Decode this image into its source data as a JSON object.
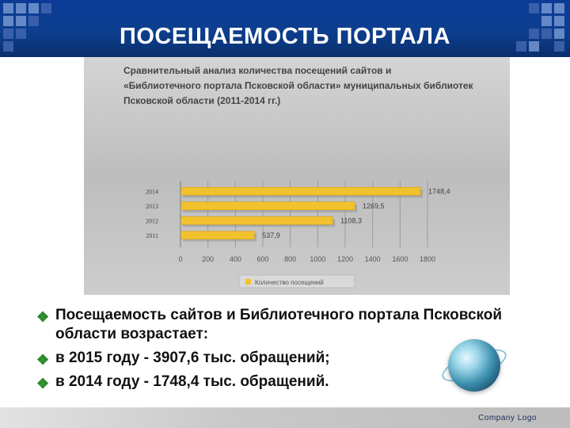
{
  "slide": {
    "title": "ПОСЕЩАЕМОСТЬ ПОРТАЛА",
    "footer_logo": "Company  Logo"
  },
  "colors": {
    "header_blue": "#0b3b97",
    "bar_fill": "#f2c12e",
    "bullet_green": "#2a8a2a"
  },
  "icons": {
    "bullet": "diamond-bullet-icon",
    "globe": "globe-icon"
  },
  "chart_data": {
    "type": "bar",
    "orientation": "horizontal",
    "title_lines": [
      "Сравнительный анализ количества посещений сайтов и",
      "«Библиотечного портала Псковской области» муниципальных библиотек",
      "Псковской области (2011-2014 гг.)"
    ],
    "categories": [
      "2014",
      "2013",
      "2012",
      "2011"
    ],
    "values": [
      1748.4,
      1269.5,
      1108.3,
      537.9
    ],
    "value_labels": [
      "1748,4",
      "1269,5",
      "1108,3",
      "537,9"
    ],
    "xlim": [
      0,
      1800
    ],
    "x_ticks": [
      "0",
      "200",
      "400",
      "600",
      "800",
      "1000",
      "1200",
      "1400",
      "1600",
      "1800"
    ],
    "grid": true,
    "legend": {
      "entries": [
        "Количество посещений"
      ],
      "placement": "bottom"
    }
  },
  "bullets": [
    "Посещаемость сайтов и Библиотечного портала Псковской области возрастает:",
    "в 2015 году  - 3907,6 тыс. обращений;",
    "в 2014 году  - 1748,4 тыс. обращений."
  ]
}
